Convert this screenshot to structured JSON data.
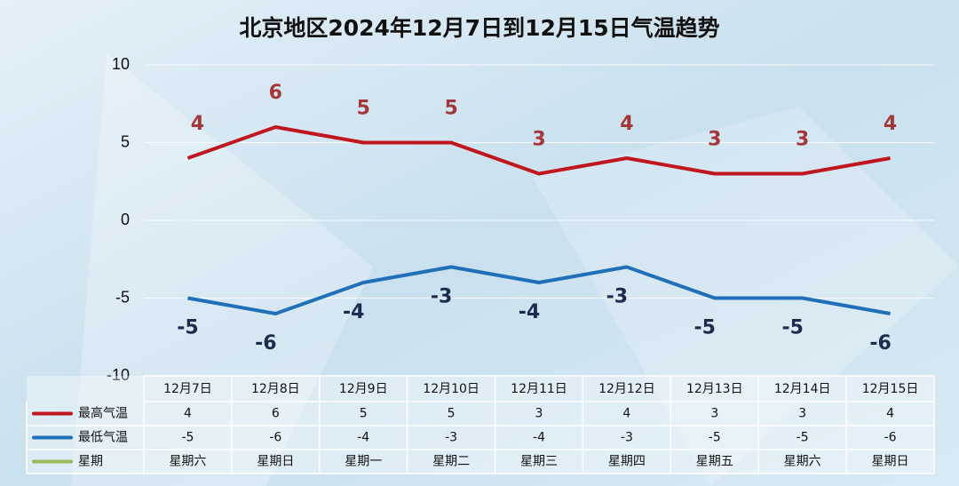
{
  "chart_data": {
    "type": "line",
    "title": "北京地区2024年12月7日到12月15日气温趋势",
    "categories": [
      "12月7日",
      "12月8日",
      "12月9日",
      "12月10日",
      "12月11日",
      "12月12日",
      "12月13日",
      "12月14日",
      "12月15日"
    ],
    "series": [
      {
        "name": "最高气温",
        "color": "#c0161e",
        "label_color": "#a3373a",
        "values": [
          4,
          6,
          5,
          5,
          3,
          4,
          3,
          3,
          4
        ]
      },
      {
        "name": "最低气温",
        "color": "#1f70b8",
        "label_color": "#1c2b4e",
        "values": [
          -5,
          -6,
          -4,
          -3,
          -4,
          -3,
          -5,
          -5,
          -6
        ]
      }
    ],
    "table_row": {
      "name": "星期",
      "color": "#9bbb59",
      "cells": [
        "星期六",
        "星期日",
        "星期一",
        "星期二",
        "星期三",
        "星期四",
        "星期五",
        "星期六",
        "星期日"
      ]
    },
    "ylim": [
      -10,
      10
    ],
    "yticks": [
      -10,
      -5,
      0,
      5,
      10
    ],
    "grid": true
  }
}
